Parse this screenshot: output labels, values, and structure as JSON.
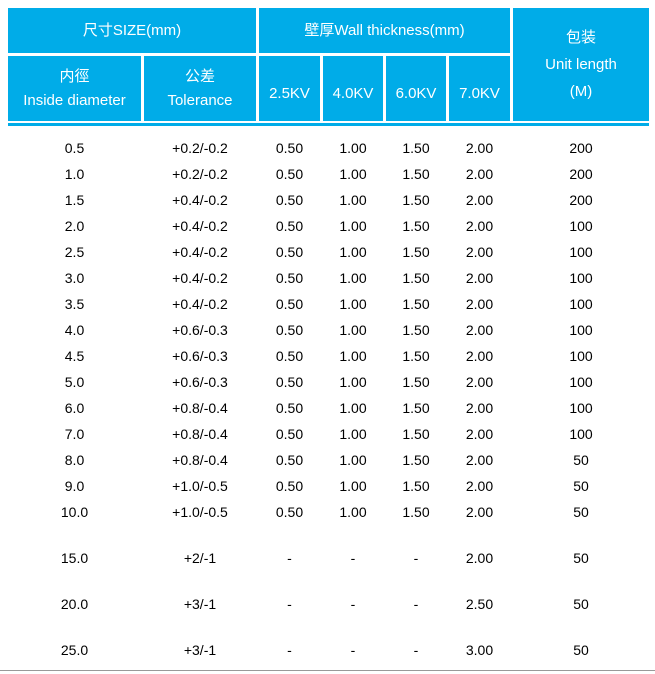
{
  "colors": {
    "header_bg": "#00ACE8",
    "header_text": "#FFFFFF",
    "body_text": "#000000",
    "bottom_rule": "#999999"
  },
  "header": {
    "size_group": "尺寸SIZE(mm)",
    "wall_group": "壁厚Wall thickness(mm)",
    "packing": {
      "zh": "包装",
      "en": "Unit length",
      "unit": "(M)"
    },
    "inside_diameter": {
      "zh": "内徑",
      "en": "Inside diameter"
    },
    "tolerance": {
      "zh": "公差",
      "en": "Tolerance"
    },
    "kv": [
      "2.5KV",
      "4.0KV",
      "6.0KV",
      "7.0KV"
    ]
  },
  "chart_data": {
    "type": "table",
    "title": "尺寸SIZE(mm) / 壁厚Wall thickness(mm) / 包装 Unit length (M)",
    "column_groups": [
      {
        "label": "尺寸SIZE(mm)",
        "columns": [
          0,
          1
        ]
      },
      {
        "label": "壁厚Wall thickness(mm)",
        "columns": [
          2,
          3,
          4,
          5
        ]
      },
      {
        "label": "包装 Unit length (M)",
        "columns": [
          6
        ]
      }
    ],
    "columns": [
      "内徑 Inside diameter",
      "公差 Tolerance",
      "2.5KV",
      "4.0KV",
      "6.0KV",
      "7.0KV",
      "包装 Unit length (M)"
    ],
    "rows": [
      [
        "0.5",
        "+0.2/-0.2",
        "0.50",
        "1.00",
        "1.50",
        "2.00",
        "200"
      ],
      [
        "1.0",
        "+0.2/-0.2",
        "0.50",
        "1.00",
        "1.50",
        "2.00",
        "200"
      ],
      [
        "1.5",
        "+0.4/-0.2",
        "0.50",
        "1.00",
        "1.50",
        "2.00",
        "200"
      ],
      [
        "2.0",
        "+0.4/-0.2",
        "0.50",
        "1.00",
        "1.50",
        "2.00",
        "100"
      ],
      [
        "2.5",
        "+0.4/-0.2",
        "0.50",
        "1.00",
        "1.50",
        "2.00",
        "100"
      ],
      [
        "3.0",
        "+0.4/-0.2",
        "0.50",
        "1.00",
        "1.50",
        "2.00",
        "100"
      ],
      [
        "3.5",
        "+0.4/-0.2",
        "0.50",
        "1.00",
        "1.50",
        "2.00",
        "100"
      ],
      [
        "4.0",
        "+0.6/-0.3",
        "0.50",
        "1.00",
        "1.50",
        "2.00",
        "100"
      ],
      [
        "4.5",
        "+0.6/-0.3",
        "0.50",
        "1.00",
        "1.50",
        "2.00",
        "100"
      ],
      [
        "5.0",
        "+0.6/-0.3",
        "0.50",
        "1.00",
        "1.50",
        "2.00",
        "100"
      ],
      [
        "6.0",
        "+0.8/-0.4",
        "0.50",
        "1.00",
        "1.50",
        "2.00",
        "100"
      ],
      [
        "7.0",
        "+0.8/-0.4",
        "0.50",
        "1.00",
        "1.50",
        "2.00",
        "100"
      ],
      [
        "8.0",
        "+0.8/-0.4",
        "0.50",
        "1.00",
        "1.50",
        "2.00",
        "50"
      ],
      [
        "9.0",
        "+1.0/-0.5",
        "0.50",
        "1.00",
        "1.50",
        "2.00",
        "50"
      ],
      [
        "10.0",
        "+1.0/-0.5",
        "0.50",
        "1.00",
        "1.50",
        "2.00",
        "50"
      ],
      [
        "15.0",
        "+2/-1",
        "-",
        "-",
        "-",
        "2.00",
        "50"
      ],
      [
        "20.0",
        "+3/-1",
        "-",
        "-",
        "-",
        "2.50",
        "50"
      ],
      [
        "25.0",
        "+3/-1",
        "-",
        "-",
        "-",
        "3.00",
        "50"
      ]
    ],
    "spaced_row_indices": [
      15,
      16,
      17
    ],
    "layout": {
      "grid": "off",
      "header_merged_cells": true
    }
  }
}
